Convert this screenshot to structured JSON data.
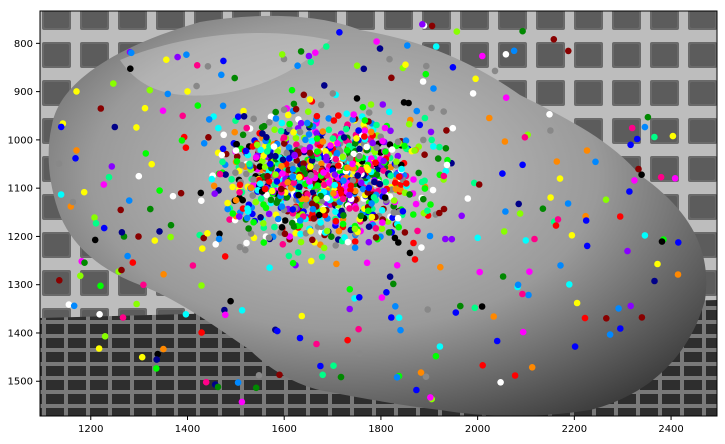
{
  "chart_data": {
    "type": "scatter",
    "title": "",
    "xlabel": "",
    "ylabel": "",
    "xlim": [
      1095,
      2495
    ],
    "ylim": [
      1572,
      733
    ],
    "y_inverted": true,
    "grid": false,
    "legend": "none",
    "background": "grayscale photograph of a large rock against a grid-patterned wall and floor",
    "xticks": [
      1200,
      1400,
      1600,
      1800,
      2000,
      2200,
      2400
    ],
    "yticks": [
      800,
      900,
      1000,
      1100,
      1200,
      1300,
      1400,
      1500
    ],
    "xtick_labels": [
      "1200",
      "1400",
      "1600",
      "1800",
      "2000",
      "2200",
      "2400"
    ],
    "ytick_labels": [
      "800",
      "900",
      "1000",
      "1100",
      "1200",
      "1300",
      "1400",
      "1500"
    ],
    "marker": "filled circle, many random colors",
    "approx_point_count": 1400,
    "point_region": {
      "x": [
        1130,
        2430
      ],
      "y": [
        755,
        1545
      ]
    },
    "colors": [
      "#ff0000",
      "#00ff00",
      "#0000ff",
      "#ff00ff",
      "#00ffff",
      "#ffff00",
      "#ff8800",
      "#8800ff",
      "#00ff88",
      "#ff0088",
      "#88ff00",
      "#0088ff",
      "#008800",
      "#880000",
      "#000088",
      "#ffffff",
      "#000000",
      "#888888"
    ]
  }
}
